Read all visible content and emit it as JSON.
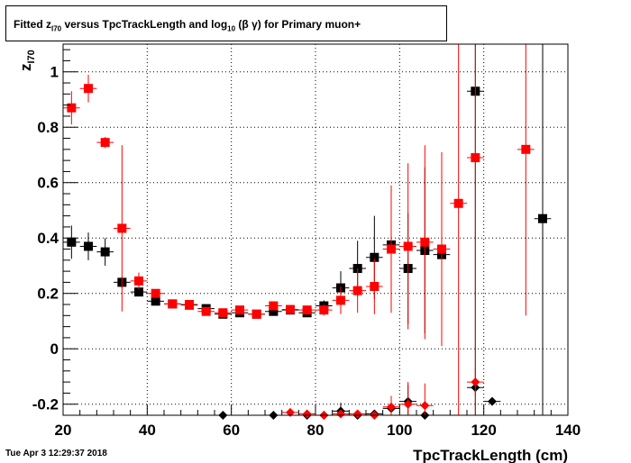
{
  "title": {
    "prefix": "Fitted  z",
    "sub1": "I70",
    "middle": "  versus TpcTrackLength and log",
    "sub2": "10",
    "suffix": "(β γ) for Primary muon+"
  },
  "timestamp": "Tue Apr  3 12:29:37 2018",
  "chart_data": {
    "type": "scatter",
    "xlabel": "TpcTrackLength (cm)",
    "ylabel_main": "z",
    "ylabel_sub": "I70",
    "xlim": [
      20,
      140
    ],
    "ylim": [
      -0.24,
      1.1
    ],
    "x_ticks": [
      20,
      40,
      60,
      80,
      100,
      120,
      140
    ],
    "y_ticks": [
      -0.2,
      0,
      0.2,
      0.4,
      0.6,
      0.8,
      1
    ],
    "grid": true,
    "colors": {
      "black": "#000000",
      "red": "#ff0000"
    },
    "series": [
      {
        "color": "black",
        "marker": "square",
        "points": [
          {
            "x": 22,
            "y": 0.385,
            "err": 0.06
          },
          {
            "x": 26,
            "y": 0.37,
            "err": 0.05
          },
          {
            "x": 30,
            "y": 0.35,
            "err": 0.05
          },
          {
            "x": 34,
            "y": 0.24,
            "err": 0.02
          },
          {
            "x": 38,
            "y": 0.205,
            "err": 0.01
          },
          {
            "x": 42,
            "y": 0.172,
            "err": 0.008
          },
          {
            "x": 46,
            "y": 0.162,
            "err": 0.006
          },
          {
            "x": 50,
            "y": 0.158,
            "err": 0.006
          },
          {
            "x": 54,
            "y": 0.145,
            "err": 0.006
          },
          {
            "x": 58,
            "y": 0.125,
            "err": 0.006
          },
          {
            "x": 62,
            "y": 0.13,
            "err": 0.006
          },
          {
            "x": 66,
            "y": 0.125,
            "err": 0.006
          },
          {
            "x": 70,
            "y": 0.135,
            "err": 0.008
          },
          {
            "x": 74,
            "y": 0.14,
            "err": 0.008
          },
          {
            "x": 78,
            "y": 0.13,
            "err": 0.01
          },
          {
            "x": 82,
            "y": 0.155,
            "err": 0.02
          },
          {
            "x": 86,
            "y": 0.22,
            "err": 0.06
          },
          {
            "x": 90,
            "y": 0.29,
            "err": 0.1
          },
          {
            "x": 94,
            "y": 0.33,
            "err": 0.15
          },
          {
            "x": 98,
            "y": 0.375,
            "err": 0.2
          },
          {
            "x": 102,
            "y": 0.29,
            "err": 0.2
          },
          {
            "x": 106,
            "y": 0.355,
            "err": 0.3
          },
          {
            "x": 110,
            "y": 0.34,
            "err": 0.33
          },
          {
            "x": 118,
            "y": 0.93,
            "err": 1.2
          },
          {
            "x": 134,
            "y": 0.47,
            "err": 1.2
          }
        ]
      },
      {
        "color": "red",
        "marker": "square",
        "points": [
          {
            "x": 22,
            "y": 0.87,
            "err": 0.06
          },
          {
            "x": 26,
            "y": 0.94,
            "err": 0.05
          },
          {
            "x": 30,
            "y": 0.745,
            "err": 0.02
          },
          {
            "x": 34,
            "y": 0.435,
            "err": 0.3
          },
          {
            "x": 38,
            "y": 0.245,
            "err": 0.03
          },
          {
            "x": 42,
            "y": 0.2,
            "err": 0.015
          },
          {
            "x": 46,
            "y": 0.162,
            "err": 0.006
          },
          {
            "x": 50,
            "y": 0.16,
            "err": 0.006
          },
          {
            "x": 54,
            "y": 0.135,
            "err": 0.006
          },
          {
            "x": 58,
            "y": 0.13,
            "err": 0.006
          },
          {
            "x": 62,
            "y": 0.14,
            "err": 0.006
          },
          {
            "x": 66,
            "y": 0.125,
            "err": 0.006
          },
          {
            "x": 70,
            "y": 0.155,
            "err": 0.008
          },
          {
            "x": 74,
            "y": 0.142,
            "err": 0.01
          },
          {
            "x": 78,
            "y": 0.14,
            "err": 0.015
          },
          {
            "x": 82,
            "y": 0.14,
            "err": 0.02
          },
          {
            "x": 86,
            "y": 0.175,
            "err": 0.05
          },
          {
            "x": 90,
            "y": 0.21,
            "err": 0.08
          },
          {
            "x": 94,
            "y": 0.225,
            "err": 0.1
          },
          {
            "x": 98,
            "y": 0.36,
            "err": 0.23
          },
          {
            "x": 102,
            "y": 0.37,
            "err": 0.3
          },
          {
            "x": 106,
            "y": 0.385,
            "err": 0.35
          },
          {
            "x": 110,
            "y": 0.36,
            "err": 0.35
          },
          {
            "x": 114,
            "y": 0.525,
            "err": 1.2
          },
          {
            "x": 118,
            "y": 0.69,
            "err": 1.2
          },
          {
            "x": 130,
            "y": 0.72,
            "err": 0.6
          }
        ]
      },
      {
        "color": "black",
        "marker": "diamond",
        "points": [
          {
            "x": 58,
            "y": -0.245
          },
          {
            "x": 70,
            "y": -0.245
          },
          {
            "x": 78,
            "y": -0.24
          },
          {
            "x": 82,
            "y": -0.245
          },
          {
            "x": 86,
            "y": -0.225,
            "err": 0.03
          },
          {
            "x": 90,
            "y": -0.24
          },
          {
            "x": 94,
            "y": -0.235
          },
          {
            "x": 98,
            "y": -0.215,
            "err": 0.04
          },
          {
            "x": 102,
            "y": -0.19,
            "err": 0.06
          },
          {
            "x": 106,
            "y": -0.245
          },
          {
            "x": 118,
            "y": -0.14
          },
          {
            "x": 122,
            "y": -0.19
          }
        ]
      },
      {
        "color": "red",
        "marker": "diamond",
        "points": [
          {
            "x": 74,
            "y": -0.23
          },
          {
            "x": 78,
            "y": -0.235
          },
          {
            "x": 82,
            "y": -0.24
          },
          {
            "x": 86,
            "y": -0.235
          },
          {
            "x": 90,
            "y": -0.235
          },
          {
            "x": 94,
            "y": -0.24
          },
          {
            "x": 98,
            "y": -0.21,
            "err": 0.04
          },
          {
            "x": 102,
            "y": -0.2,
            "err": 0.08
          },
          {
            "x": 106,
            "y": -0.205,
            "err": 0.08
          },
          {
            "x": 118,
            "y": -0.12,
            "err": 0.05
          }
        ]
      }
    ]
  }
}
